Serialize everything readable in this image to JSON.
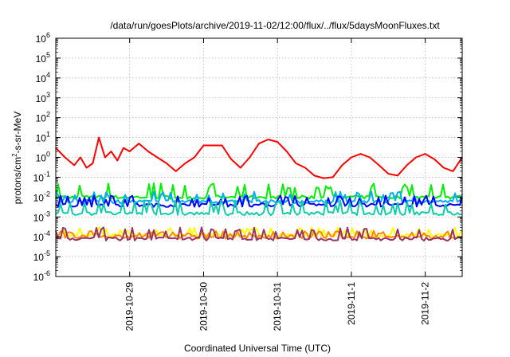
{
  "chart_data": {
    "type": "line",
    "title": "/data/run/goesPlots/archive/2019-11-02/12:00/flux/../flux/5daysMoonFluxes.txt",
    "xlabel": "Coordinated Universal Time (UTC)",
    "ylabel": {
      "prefix": "protons/cm",
      "sup": "2",
      "suffix": "-s-sr-MeV"
    },
    "yscale": "log",
    "ylim_exp": [
      -6,
      6
    ],
    "ytick_exponents": [
      -6,
      -5,
      -4,
      -3,
      -2,
      -1,
      0,
      1,
      2,
      3,
      4,
      5,
      6
    ],
    "ytick_base": "10",
    "xunit": "days",
    "xlim": [
      "2019-10-28 00:00",
      "2019-11-02 12:00"
    ],
    "xticks": [
      {
        "label": "2019-10-29",
        "date": "2019-10-29 00:00"
      },
      {
        "label": "2019-10-30",
        "date": "2019-10-30 00:00"
      },
      {
        "label": "2019-10-31",
        "date": "2019-10-31 00:00"
      },
      {
        "label": "2019-11-1",
        "date": "2019-11-01 00:00"
      },
      {
        "label": "2019-11-2",
        "date": "2019-11-02 00:00"
      }
    ],
    "grid": true,
    "legend": "none",
    "series": [
      {
        "color": "#ff0000",
        "points": [
          [
            "2019-10-28 00:00",
            3.0
          ],
          [
            "2019-10-28 03:00",
            1.0
          ],
          [
            "2019-10-28 06:00",
            0.4
          ],
          [
            "2019-10-28 08:00",
            1.0
          ],
          [
            "2019-10-28 10:00",
            0.3
          ],
          [
            "2019-10-28 12:00",
            0.5
          ],
          [
            "2019-10-28 14:00",
            10.0
          ],
          [
            "2019-10-28 16:00",
            1.0
          ],
          [
            "2019-10-28 18:00",
            2.0
          ],
          [
            "2019-10-28 20:00",
            0.7
          ],
          [
            "2019-10-28 22:00",
            3.0
          ],
          [
            "2019-10-29 00:00",
            2.0
          ],
          [
            "2019-10-29 03:00",
            5.0
          ],
          [
            "2019-10-29 06:00",
            2.0
          ],
          [
            "2019-10-29 09:00",
            1.0
          ],
          [
            "2019-10-29 12:00",
            0.5
          ],
          [
            "2019-10-29 15:00",
            0.2
          ],
          [
            "2019-10-29 18:00",
            0.5
          ],
          [
            "2019-10-29 21:00",
            1.0
          ],
          [
            "2019-10-30 00:00",
            4.0
          ],
          [
            "2019-10-30 06:00",
            4.0
          ],
          [
            "2019-10-30 09:00",
            0.8
          ],
          [
            "2019-10-30 12:00",
            0.3
          ],
          [
            "2019-10-30 15:00",
            1.0
          ],
          [
            "2019-10-30 18:00",
            5.0
          ],
          [
            "2019-10-30 21:00",
            8.0
          ],
          [
            "2019-10-31 00:00",
            6.0
          ],
          [
            "2019-10-31 03:00",
            2.0
          ],
          [
            "2019-10-31 06:00",
            0.5
          ],
          [
            "2019-10-31 09:00",
            0.3
          ],
          [
            "2019-10-31 12:00",
            0.12
          ],
          [
            "2019-10-31 15:00",
            0.09
          ],
          [
            "2019-10-31 18:00",
            0.1
          ],
          [
            "2019-10-31 21:00",
            0.4
          ],
          [
            "2019-11-01 00:00",
            1.0
          ],
          [
            "2019-11-01 03:00",
            1.5
          ],
          [
            "2019-11-01 06:00",
            1.0
          ],
          [
            "2019-11-01 09:00",
            0.4
          ],
          [
            "2019-11-01 12:00",
            0.15
          ],
          [
            "2019-11-01 15:00",
            0.12
          ],
          [
            "2019-11-01 18:00",
            0.4
          ],
          [
            "2019-11-01 21:00",
            1.0
          ],
          [
            "2019-11-02 00:00",
            1.5
          ],
          [
            "2019-11-02 03:00",
            0.8
          ],
          [
            "2019-11-02 06:00",
            0.3
          ],
          [
            "2019-11-02 09:00",
            0.2
          ],
          [
            "2019-11-02 12:00",
            1.0
          ]
        ]
      },
      {
        "color": "#00ee00",
        "baseline": 0.01,
        "spikes_to": 0.05
      },
      {
        "color": "#00aaff",
        "baseline": 0.006,
        "spikes_to": 0.02
      },
      {
        "color": "#0000ff",
        "baseline": 0.004,
        "spikes_to": 0.012
      },
      {
        "color": "#11ccaa",
        "baseline": 0.0015,
        "spikes_to": 0.007
      },
      {
        "color": "#ffff00",
        "baseline": 0.00012,
        "spikes_to": 0.0003
      },
      {
        "color": "#ff8800",
        "baseline": 0.0001,
        "spikes_to": 0.0002
      },
      {
        "color": "#993366",
        "baseline": 8e-05,
        "spikes_to": 0.0003
      }
    ]
  }
}
